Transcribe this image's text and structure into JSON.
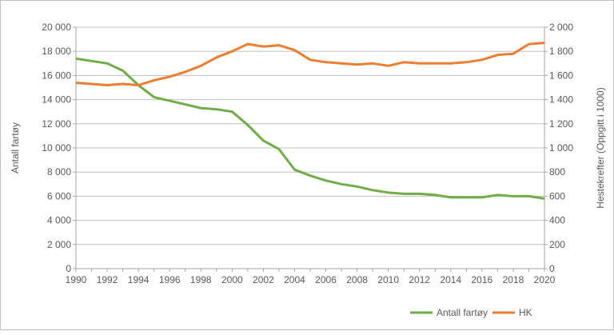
{
  "chart_data": {
    "type": "line",
    "title": "",
    "xlabel": "",
    "ylabel": "Antall fartøy",
    "y2label": "Hestekrefter (Oppgitt i 1000)",
    "x": [
      1990,
      1991,
      1992,
      1993,
      1994,
      1995,
      1996,
      1997,
      1998,
      1999,
      2000,
      2001,
      2002,
      2003,
      2004,
      2005,
      2006,
      2007,
      2008,
      2009,
      2010,
      2011,
      2012,
      2013,
      2014,
      2015,
      2016,
      2017,
      2018,
      2019,
      2020
    ],
    "xticks": [
      "1990",
      "1992",
      "1994",
      "1996",
      "1998",
      "2000",
      "2002",
      "2004",
      "2006",
      "2008",
      "2010",
      "2012",
      "2014",
      "2016",
      "2018",
      "2020"
    ],
    "ylim": [
      0,
      20000
    ],
    "yticks": [
      "0",
      "2 000",
      "4 000",
      "6 000",
      "8 000",
      "10 000",
      "12 000",
      "14 000",
      "16 000",
      "18 000",
      "20 000"
    ],
    "y2lim": [
      0,
      2000
    ],
    "y2ticks": [
      "0",
      "200",
      "400",
      "600",
      "800",
      "1 000",
      "1 200",
      "1 400",
      "1 600",
      "1 800",
      "2 000"
    ],
    "grid": true,
    "legend": "bottom-right",
    "series": [
      {
        "name": "Antall fartøy",
        "axis": "left",
        "color": "#70ad47",
        "values": [
          17400,
          17200,
          17000,
          16400,
          15200,
          14200,
          13900,
          13600,
          13300,
          13200,
          13000,
          11900,
          10600,
          9900,
          8200,
          7700,
          7300,
          7000,
          6800,
          6500,
          6300,
          6200,
          6200,
          6100,
          5900,
          5900,
          5900,
          6100,
          6000,
          6000,
          5800
        ]
      },
      {
        "name": "HK",
        "axis": "right",
        "color": "#ed7d31",
        "values": [
          1540,
          1530,
          1520,
          1530,
          1520,
          1560,
          1590,
          1630,
          1680,
          1750,
          1800,
          1860,
          1840,
          1850,
          1810,
          1730,
          1710,
          1700,
          1690,
          1700,
          1680,
          1710,
          1700,
          1700,
          1700,
          1710,
          1730,
          1770,
          1780,
          1860,
          1870
        ]
      }
    ]
  }
}
